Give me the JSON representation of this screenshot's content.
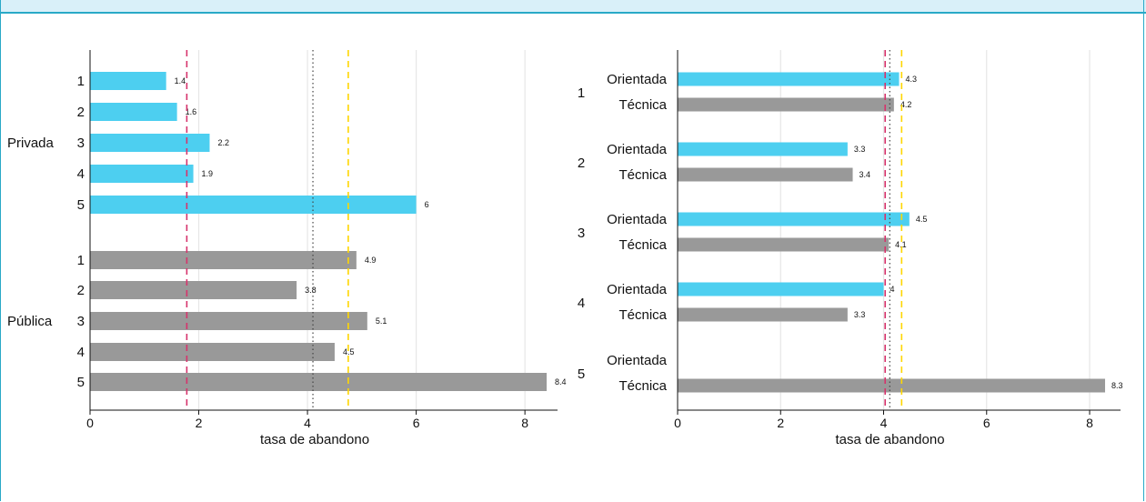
{
  "chart_data": [
    {
      "type": "bar",
      "orientation": "horizontal",
      "xlabel": "tasa de abandono",
      "xlim": [
        0,
        8.6
      ],
      "xticks": [
        0,
        2,
        4,
        6,
        8
      ],
      "grid": "vertical",
      "groups": [
        {
          "label": "Privada",
          "categories": [
            "1",
            "2",
            "3",
            "4",
            "5"
          ],
          "values": [
            1.4,
            1.6,
            2.2,
            1.9,
            6
          ],
          "color": "#4dcff0"
        },
        {
          "label": "Pública",
          "categories": [
            "1",
            "2",
            "3",
            "4",
            "5"
          ],
          "values": [
            4.9,
            3.8,
            5.1,
            4.5,
            8.4
          ],
          "color": "#999999"
        }
      ],
      "reference_lines": [
        {
          "value": 1.78,
          "style": "dashed",
          "color": "#d6336c"
        },
        {
          "value": 4.1,
          "style": "dotted",
          "color": "#444444"
        },
        {
          "value": 4.75,
          "style": "dashed",
          "color": "#ffd700"
        }
      ]
    },
    {
      "type": "bar",
      "orientation": "horizontal",
      "xlabel": "tasa de abandono",
      "xlim": [
        0,
        8.6
      ],
      "xticks": [
        0,
        2,
        4,
        6,
        8
      ],
      "grid": "vertical",
      "groups": [
        {
          "label": "1",
          "bars": [
            {
              "name": "Orientada",
              "value": 4.3
            },
            {
              "name": "Técnica",
              "value": 4.2
            }
          ]
        },
        {
          "label": "2",
          "bars": [
            {
              "name": "Orientada",
              "value": 3.3
            },
            {
              "name": "Técnica",
              "value": 3.4
            }
          ]
        },
        {
          "label": "3",
          "bars": [
            {
              "name": "Orientada",
              "value": 4.5
            },
            {
              "name": "Técnica",
              "value": 4.1
            }
          ]
        },
        {
          "label": "4",
          "bars": [
            {
              "name": "Orientada",
              "value": 4
            },
            {
              "name": "Técnica",
              "value": 3.3
            }
          ]
        },
        {
          "label": "5",
          "bars": [
            {
              "name": "Orientada",
              "value": null
            },
            {
              "name": "Técnica",
              "value": 8.3
            }
          ]
        }
      ],
      "colors": {
        "Orientada": "#4dcff0",
        "Técnica": "#999999"
      },
      "reference_lines": [
        {
          "value": 4.03,
          "style": "dashed",
          "color": "#d6336c"
        },
        {
          "value": 4.12,
          "style": "dotted",
          "color": "#444444"
        },
        {
          "value": 4.35,
          "style": "dashed",
          "color": "#ffd700"
        }
      ]
    }
  ]
}
